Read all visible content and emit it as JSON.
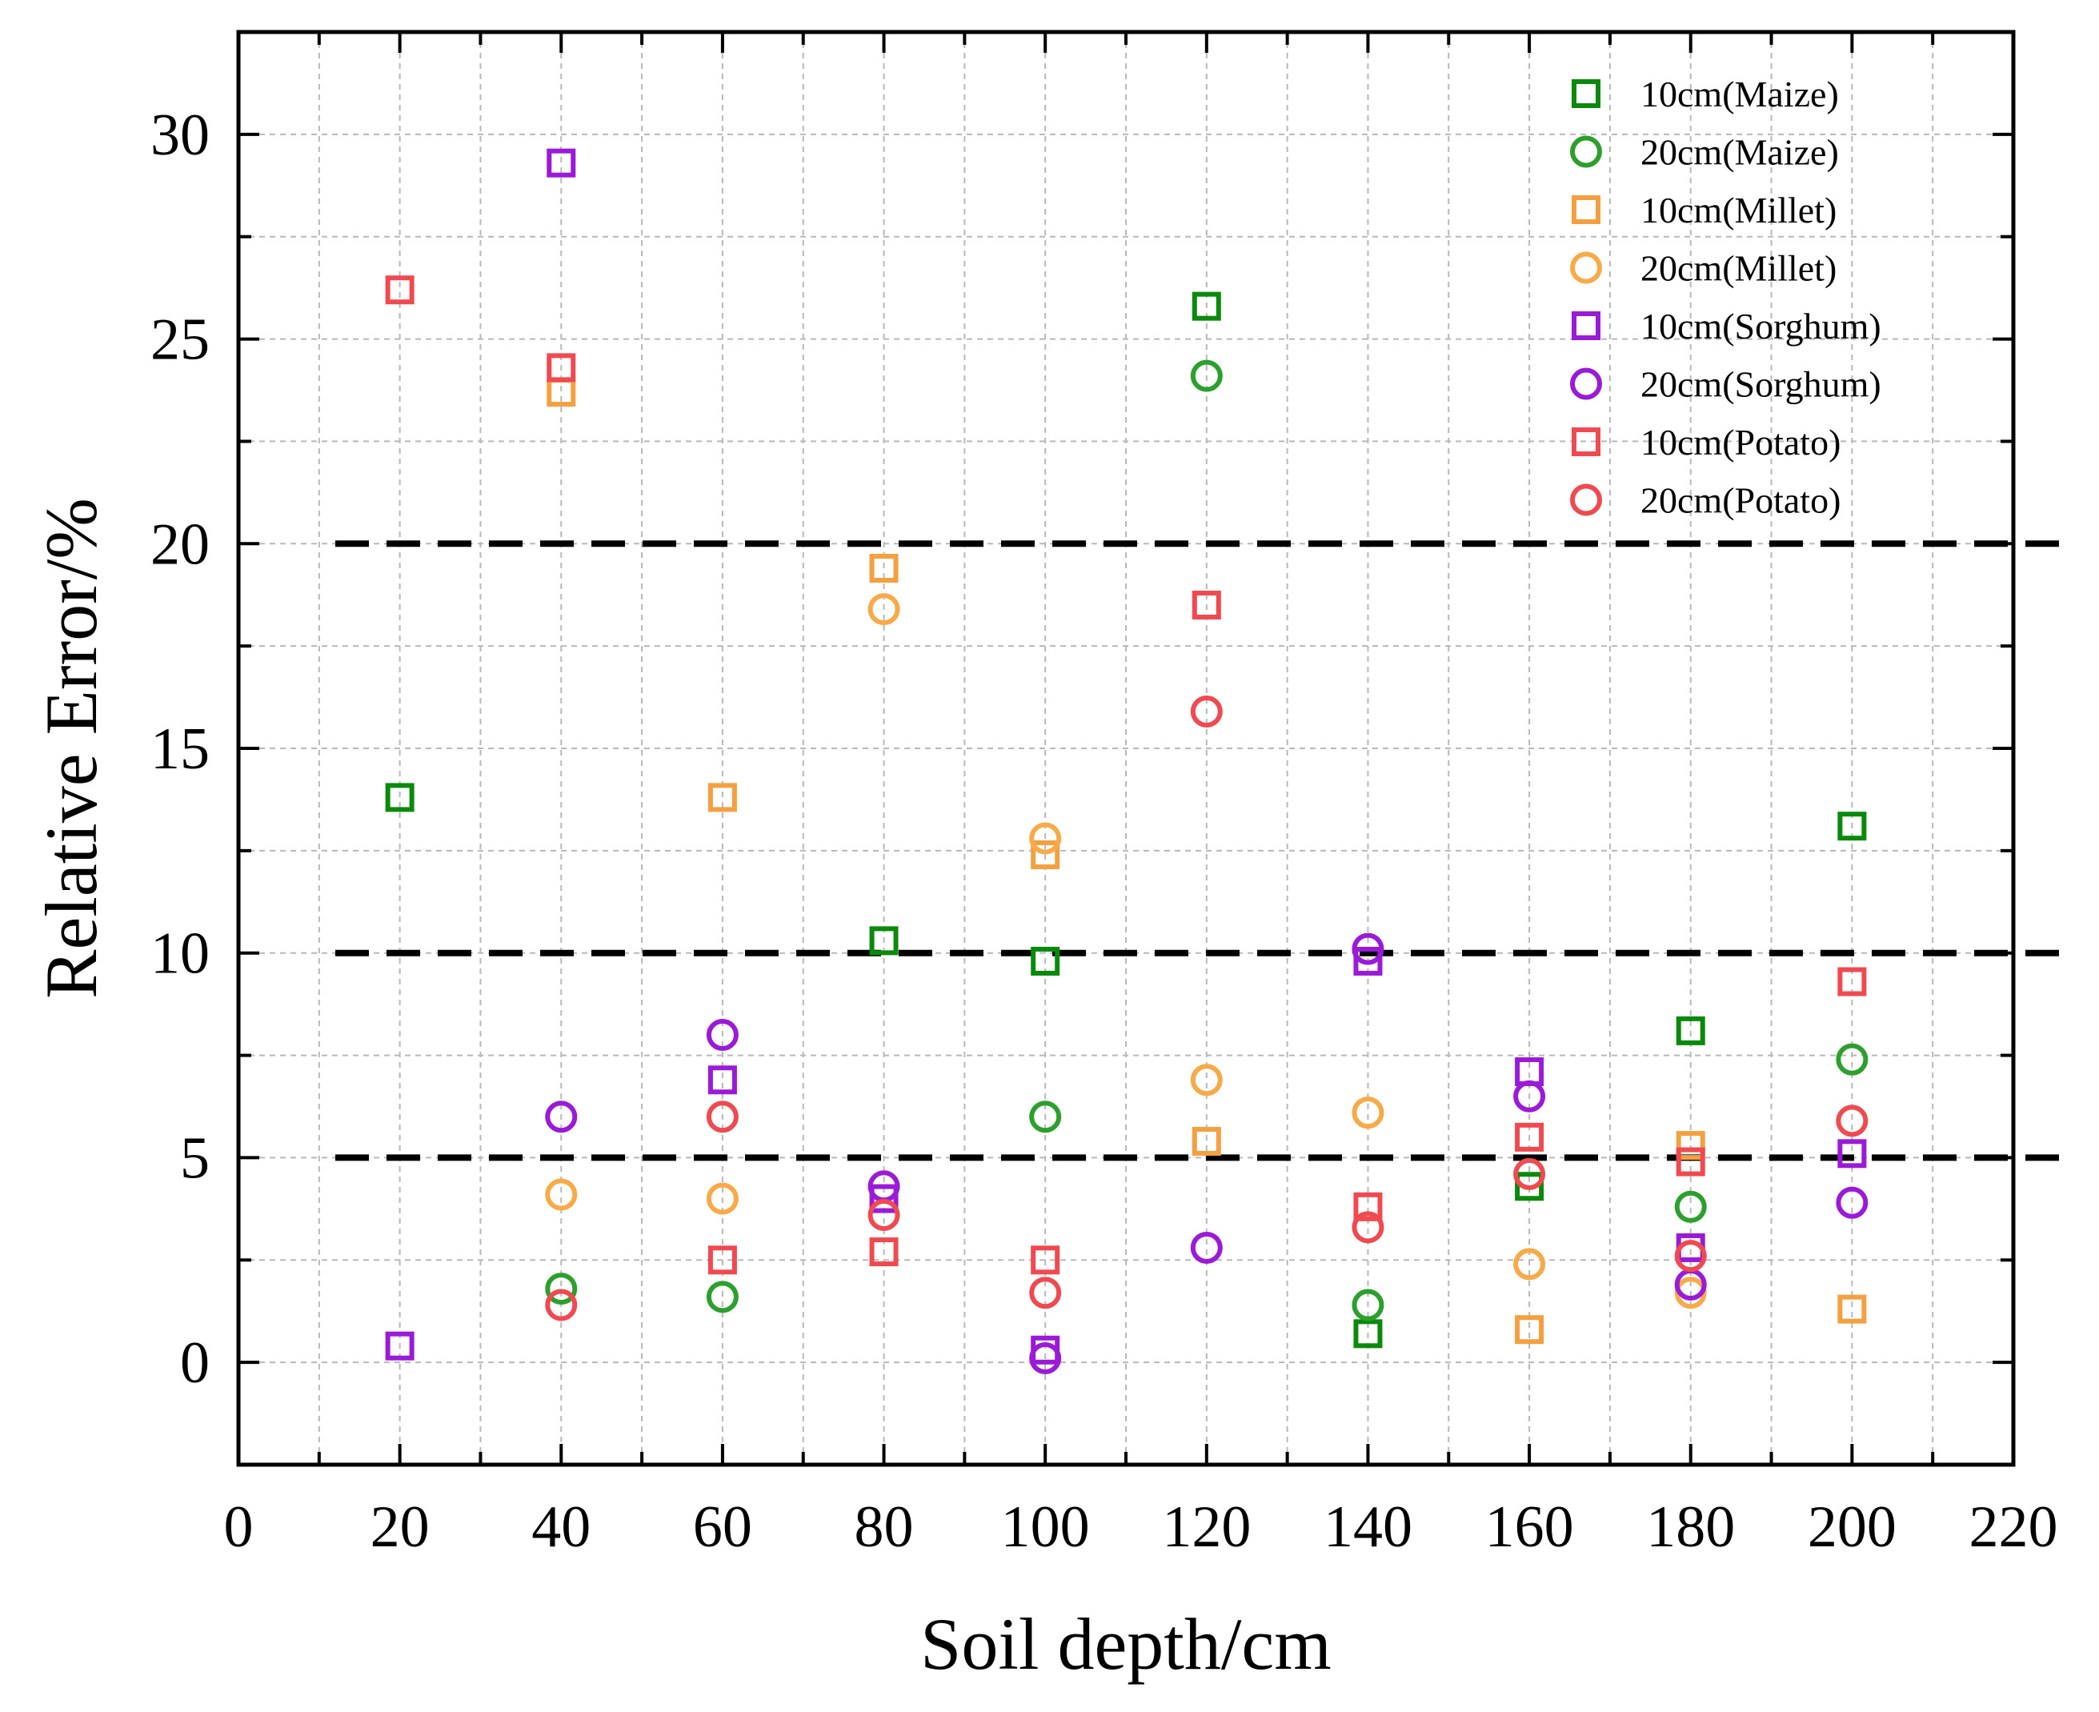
{
  "chart_data": {
    "type": "scatter",
    "title": "",
    "xlabel": "Soil depth/cm",
    "ylabel": "Relative Error/%",
    "xlim": [
      0,
      220
    ],
    "ylim": [
      -2.5,
      32.5
    ],
    "xticks": [
      0,
      20,
      40,
      60,
      80,
      100,
      120,
      140,
      160,
      180,
      200,
      220
    ],
    "yticks": [
      0,
      5,
      10,
      15,
      20,
      25,
      30
    ],
    "grid": true,
    "legend_position": "top-right",
    "reference_lines": [
      5,
      10,
      20
    ],
    "series": [
      {
        "name": "10cm(Maize)",
        "marker": "square",
        "color": "#0a8a0a",
        "x": [
          20,
          80,
          100,
          120,
          140,
          160,
          180,
          200
        ],
        "y": [
          13.8,
          10.3,
          9.8,
          25.8,
          0.7,
          4.3,
          8.1,
          13.1
        ]
      },
      {
        "name": "20cm(Maize)",
        "marker": "circle",
        "color": "#2ca02c",
        "x": [
          40,
          60,
          100,
          120,
          140,
          180,
          200
        ],
        "y": [
          1.8,
          1.6,
          6.0,
          24.1,
          1.4,
          3.8,
          7.4
        ]
      },
      {
        "name": "10cm(Millet)",
        "marker": "square",
        "color": "#f5a040",
        "x": [
          40,
          60,
          80,
          100,
          120,
          160,
          180,
          200
        ],
        "y": [
          23.7,
          13.8,
          19.4,
          12.4,
          5.4,
          0.8,
          5.3,
          1.3
        ]
      },
      {
        "name": "20cm(Millet)",
        "marker": "circle",
        "color": "#f8aa48",
        "x": [
          40,
          60,
          80,
          100,
          120,
          140,
          160,
          180
        ],
        "y": [
          4.1,
          4.0,
          18.4,
          12.8,
          6.9,
          6.1,
          2.4,
          1.7
        ]
      },
      {
        "name": "10cm(Sorghum)",
        "marker": "square",
        "color": "#9a1ad8",
        "x": [
          20,
          40,
          60,
          80,
          100,
          140,
          160,
          180,
          200
        ],
        "y": [
          0.4,
          29.3,
          6.9,
          4.0,
          0.3,
          9.8,
          7.1,
          2.8,
          5.1
        ]
      },
      {
        "name": "20cm(Sorghum)",
        "marker": "circle",
        "color": "#9a1ad8",
        "x": [
          40,
          60,
          80,
          100,
          120,
          140,
          160,
          180,
          200
        ],
        "y": [
          6.0,
          8.0,
          4.3,
          0.1,
          2.8,
          10.1,
          6.5,
          1.9,
          3.9
        ]
      },
      {
        "name": "10cm(Potato)",
        "marker": "square",
        "color": "#f04a50",
        "x": [
          20,
          40,
          60,
          80,
          100,
          120,
          140,
          160,
          180,
          200
        ],
        "y": [
          26.2,
          24.3,
          2.5,
          2.7,
          2.5,
          18.5,
          3.8,
          5.5,
          4.9,
          9.3
        ]
      },
      {
        "name": "20cm(Potato)",
        "marker": "circle",
        "color": "#f04a50",
        "x": [
          40,
          60,
          80,
          100,
          120,
          140,
          160,
          180,
          200
        ],
        "y": [
          1.4,
          6.0,
          3.6,
          1.7,
          15.9,
          3.3,
          4.6,
          2.6,
          5.9
        ]
      }
    ]
  }
}
